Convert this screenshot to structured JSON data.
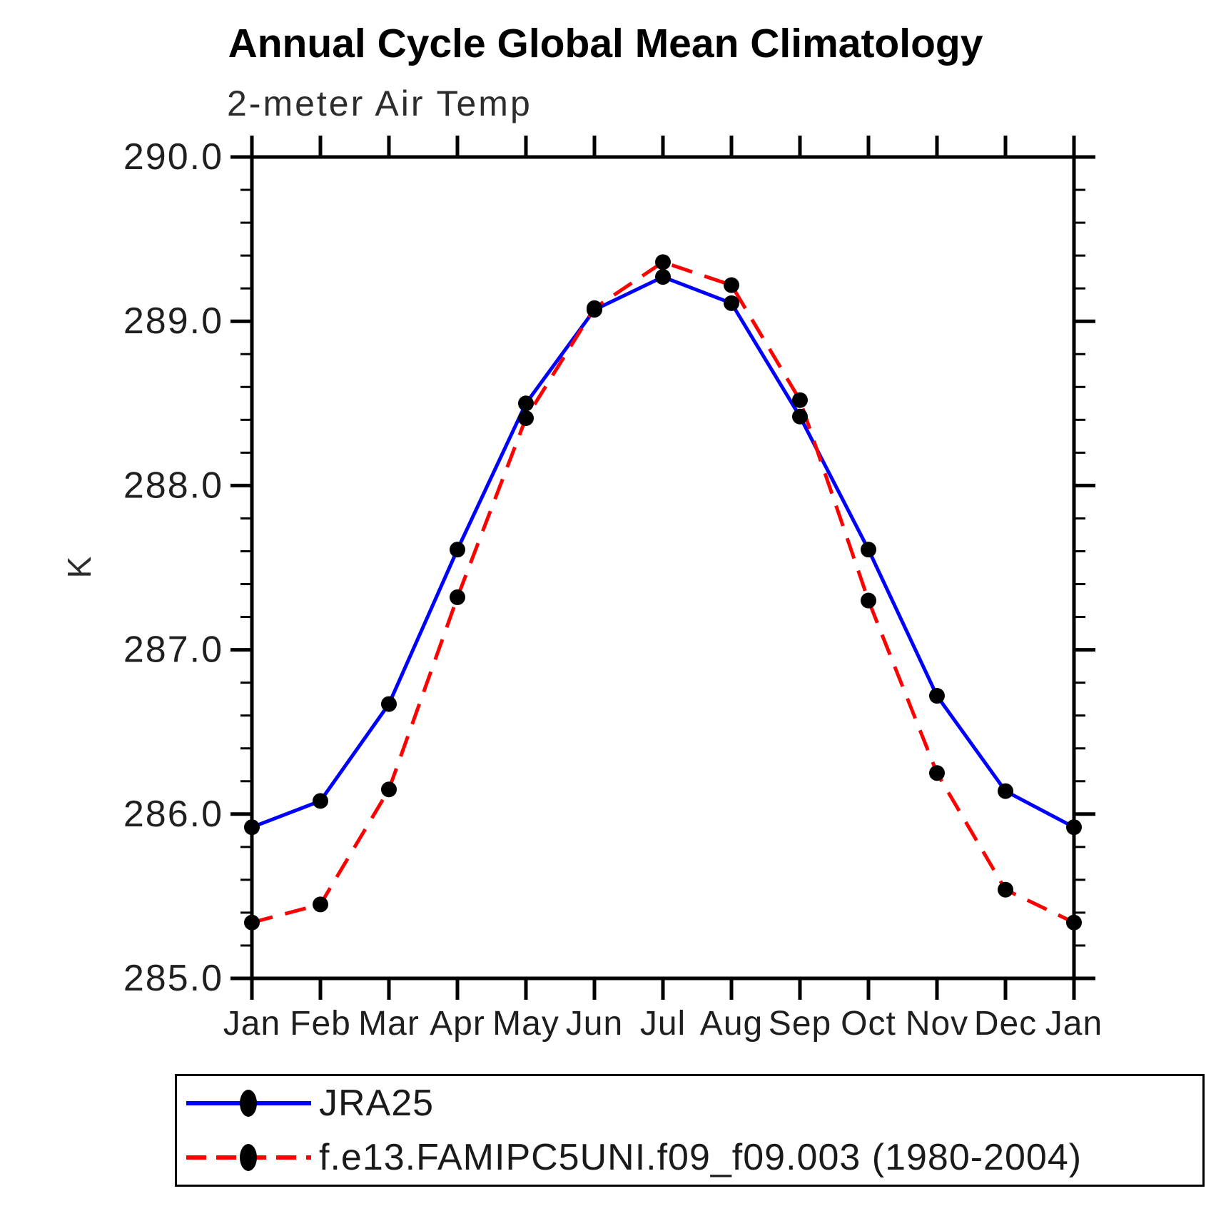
{
  "page": {
    "title": "Annual Cycle Global Mean Climatology",
    "subtitle": "2-meter Air Temp"
  },
  "chart_data": {
    "type": "line",
    "title": "Annual Cycle Global Mean Climatology",
    "subtitle": "2-meter Air Temp",
    "ylabel": "K",
    "xlabel": "",
    "ylim": [
      285.0,
      290.0
    ],
    "ytick_major_interval": 1.0,
    "ytick_minor_interval": 0.2,
    "ytick_labels": [
      "285.0",
      "286.0",
      "287.0",
      "288.0",
      "289.0",
      "290.0"
    ],
    "categories": [
      "Jan",
      "Feb",
      "Mar",
      "Apr",
      "May",
      "Jun",
      "Jul",
      "Aug",
      "Sep",
      "Oct",
      "Nov",
      "Dec",
      "Jan"
    ],
    "grid": false,
    "legend_position": "bottom-left",
    "marker": "filled-circle",
    "marker_color": "#000000",
    "axis_color": "#000000",
    "series": [
      {
        "name": "JRA25",
        "color": "#0000ff",
        "line_style": "solid",
        "values": [
          285.92,
          286.08,
          286.67,
          287.61,
          288.5,
          289.07,
          289.27,
          289.11,
          288.42,
          287.61,
          286.72,
          286.14,
          285.92
        ]
      },
      {
        "name": "f.e13.FAMIPC5UNI.f09_f09.003 (1980-2004)",
        "color": "#ff0000",
        "line_style": "dashed",
        "values": [
          285.34,
          285.45,
          286.15,
          287.32,
          288.41,
          289.08,
          289.36,
          289.22,
          288.52,
          287.3,
          286.25,
          285.54,
          285.34
        ]
      }
    ]
  }
}
